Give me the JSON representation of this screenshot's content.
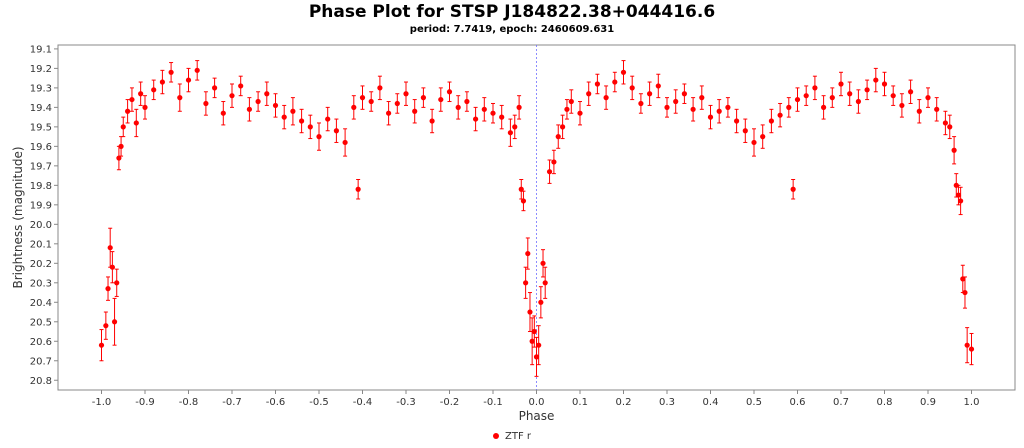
{
  "chart_data": {
    "type": "scatter",
    "title": "Phase Plot for STSP J184822.38+044416.6",
    "subtitle": "period: 7.7419, epoch: 2460609.631",
    "xlabel": "Phase",
    "ylabel": "Brightness (magnitude)",
    "xlim": [
      -1.1,
      1.1
    ],
    "ylim": [
      20.85,
      19.08
    ],
    "y_inverted": true,
    "xticks": [
      "-1.0",
      "-0.9",
      "-0.8",
      "-0.7",
      "-0.6",
      "-0.5",
      "-0.4",
      "-0.3",
      "-0.2",
      "-0.1",
      "0.0",
      "0.1",
      "0.2",
      "0.3",
      "0.4",
      "0.5",
      "0.6",
      "0.7",
      "0.8",
      "0.9",
      "1.0"
    ],
    "yticks": [
      "19.1",
      "19.2",
      "19.3",
      "19.4",
      "19.5",
      "19.6",
      "19.7",
      "19.8",
      "19.9",
      "20.0",
      "20.1",
      "20.2",
      "20.3",
      "20.4",
      "20.5",
      "20.6",
      "20.7",
      "20.8"
    ],
    "grid": false,
    "reference_line_x": 0.0,
    "legend_position": "bottom",
    "series": [
      {
        "name": "ZTF r",
        "color": "#ff0000",
        "x": [
          -1.0,
          -0.99,
          -0.985,
          -0.98,
          -0.975,
          -0.97,
          -0.965,
          -0.96,
          -0.955,
          -0.95,
          -0.94,
          -0.93,
          -0.92,
          -0.91,
          -0.9,
          -0.88,
          -0.86,
          -0.84,
          -0.82,
          -0.8,
          -0.78,
          -0.76,
          -0.74,
          -0.72,
          -0.7,
          -0.68,
          -0.66,
          -0.64,
          -0.62,
          -0.6,
          -0.58,
          -0.56,
          -0.54,
          -0.52,
          -0.5,
          -0.48,
          -0.46,
          -0.44,
          -0.42,
          -0.41,
          -0.4,
          -0.38,
          -0.36,
          -0.34,
          -0.32,
          -0.3,
          -0.28,
          -0.26,
          -0.24,
          -0.22,
          -0.2,
          -0.18,
          -0.16,
          -0.14,
          -0.12,
          -0.1,
          -0.08,
          -0.06,
          -0.05,
          -0.04,
          -0.035,
          -0.03,
          -0.025,
          -0.02,
          -0.015,
          -0.01,
          -0.005,
          0.0,
          0.005,
          0.01,
          0.015,
          0.02,
          0.03,
          0.04,
          0.05,
          0.06,
          0.07,
          0.08,
          0.1,
          0.12,
          0.14,
          0.16,
          0.18,
          0.2,
          0.22,
          0.24,
          0.26,
          0.28,
          0.3,
          0.32,
          0.34,
          0.36,
          0.38,
          0.4,
          0.42,
          0.44,
          0.46,
          0.48,
          0.5,
          0.52,
          0.54,
          0.56,
          0.58,
          0.59,
          0.6,
          0.62,
          0.64,
          0.66,
          0.68,
          0.7,
          0.72,
          0.74,
          0.76,
          0.78,
          0.8,
          0.82,
          0.84,
          0.86,
          0.88,
          0.9,
          0.92,
          0.94,
          0.95,
          0.96,
          0.965,
          0.97,
          0.975,
          0.98,
          0.985,
          0.99,
          1.0
        ],
        "y": [
          20.62,
          20.52,
          20.33,
          20.12,
          20.22,
          20.5,
          20.3,
          19.66,
          19.6,
          19.5,
          19.42,
          19.36,
          19.48,
          19.33,
          19.4,
          19.31,
          19.27,
          19.22,
          19.35,
          19.26,
          19.21,
          19.38,
          19.3,
          19.43,
          19.34,
          19.29,
          19.41,
          19.37,
          19.33,
          19.39,
          19.45,
          19.42,
          19.47,
          19.5,
          19.55,
          19.46,
          19.52,
          19.58,
          19.4,
          19.82,
          19.35,
          19.37,
          19.3,
          19.43,
          19.38,
          19.33,
          19.42,
          19.35,
          19.47,
          19.36,
          19.32,
          19.4,
          19.37,
          19.46,
          19.41,
          19.43,
          19.45,
          19.53,
          19.5,
          19.4,
          19.82,
          19.88,
          20.3,
          20.15,
          20.45,
          20.6,
          20.55,
          20.68,
          20.62,
          20.4,
          20.2,
          20.3,
          19.73,
          19.68,
          19.55,
          19.5,
          19.41,
          19.37,
          19.43,
          19.33,
          19.28,
          19.35,
          19.27,
          19.22,
          19.3,
          19.38,
          19.33,
          19.29,
          19.4,
          19.37,
          19.33,
          19.41,
          19.35,
          19.45,
          19.42,
          19.4,
          19.47,
          19.52,
          19.58,
          19.55,
          19.47,
          19.44,
          19.4,
          19.82,
          19.36,
          19.34,
          19.3,
          19.4,
          19.35,
          19.28,
          19.33,
          19.37,
          19.31,
          19.26,
          19.28,
          19.34,
          19.39,
          19.32,
          19.42,
          19.35,
          19.41,
          19.48,
          19.5,
          19.62,
          19.8,
          19.85,
          19.88,
          20.28,
          20.35,
          20.62,
          20.64
        ],
        "err": [
          0.08,
          0.07,
          0.06,
          0.1,
          0.08,
          0.12,
          0.07,
          0.06,
          0.05,
          0.05,
          0.06,
          0.06,
          0.07,
          0.06,
          0.06,
          0.05,
          0.06,
          0.05,
          0.07,
          0.06,
          0.05,
          0.06,
          0.05,
          0.06,
          0.06,
          0.05,
          0.06,
          0.05,
          0.06,
          0.06,
          0.06,
          0.07,
          0.06,
          0.06,
          0.07,
          0.06,
          0.06,
          0.07,
          0.06,
          0.05,
          0.06,
          0.05,
          0.06,
          0.06,
          0.05,
          0.06,
          0.06,
          0.05,
          0.06,
          0.06,
          0.05,
          0.06,
          0.05,
          0.06,
          0.06,
          0.05,
          0.06,
          0.07,
          0.06,
          0.06,
          0.05,
          0.05,
          0.08,
          0.08,
          0.1,
          0.12,
          0.08,
          0.1,
          0.1,
          0.08,
          0.07,
          0.08,
          0.06,
          0.06,
          0.06,
          0.06,
          0.05,
          0.06,
          0.06,
          0.06,
          0.05,
          0.06,
          0.05,
          0.06,
          0.06,
          0.05,
          0.06,
          0.06,
          0.05,
          0.06,
          0.05,
          0.06,
          0.06,
          0.06,
          0.06,
          0.05,
          0.06,
          0.06,
          0.07,
          0.06,
          0.06,
          0.06,
          0.05,
          0.05,
          0.06,
          0.05,
          0.06,
          0.06,
          0.05,
          0.06,
          0.06,
          0.06,
          0.05,
          0.06,
          0.06,
          0.05,
          0.06,
          0.06,
          0.06,
          0.05,
          0.06,
          0.06,
          0.06,
          0.07,
          0.06,
          0.05,
          0.07,
          0.07,
          0.08,
          0.09,
          0.08
        ]
      }
    ]
  }
}
